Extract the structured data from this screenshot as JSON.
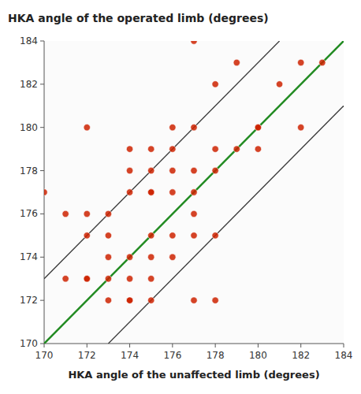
{
  "chart_data": {
    "type": "scatter",
    "title": "HKA angle of the operated limb (degrees)",
    "x_label": "HKA angle of the unaffected limb (degrees)",
    "xlim": [
      170,
      184
    ],
    "ylim": [
      170,
      184
    ],
    "xticks": [
      170,
      172,
      174,
      176,
      178,
      180,
      182,
      184
    ],
    "yticks": [
      170,
      172,
      174,
      176,
      178,
      180,
      182,
      184
    ],
    "grid": false,
    "series": [
      {
        "type": "line",
        "color": "#3a3a3a",
        "x": [
          170,
          181
        ],
        "values": [
          173,
          184
        ]
      },
      {
        "type": "line",
        "color": "#3a3a3a",
        "x": [
          173,
          184
        ],
        "values": [
          170,
          181
        ]
      },
      {
        "type": "line",
        "color": "#228B22",
        "x": [
          170,
          184
        ],
        "values": [
          170,
          184
        ]
      },
      {
        "type": "scatter",
        "color": "#CC2200",
        "x": [
          170,
          171,
          171,
          172,
          172,
          172,
          172,
          172,
          173,
          173,
          173,
          173,
          173,
          174,
          174,
          174,
          174,
          174,
          174,
          174,
          175,
          175,
          175,
          175,
          175,
          175,
          175,
          175,
          176,
          176,
          176,
          176,
          176,
          176,
          177,
          177,
          177,
          177,
          177,
          177,
          177,
          178,
          178,
          178,
          178,
          178,
          179,
          179,
          180,
          180,
          180,
          181,
          182,
          182,
          183
        ],
        "values": [
          177,
          173,
          176,
          173,
          173,
          175,
          176,
          180,
          172,
          173,
          174,
          175,
          176,
          172,
          172,
          173,
          174,
          177,
          178,
          179,
          172,
          173,
          174,
          175,
          177,
          177,
          178,
          179,
          174,
          175,
          177,
          178,
          179,
          180,
          172,
          175,
          176,
          177,
          178,
          180,
          184,
          172,
          175,
          178,
          179,
          182,
          179,
          183,
          179,
          180,
          180,
          182,
          180,
          183,
          183
        ]
      }
    ]
  }
}
